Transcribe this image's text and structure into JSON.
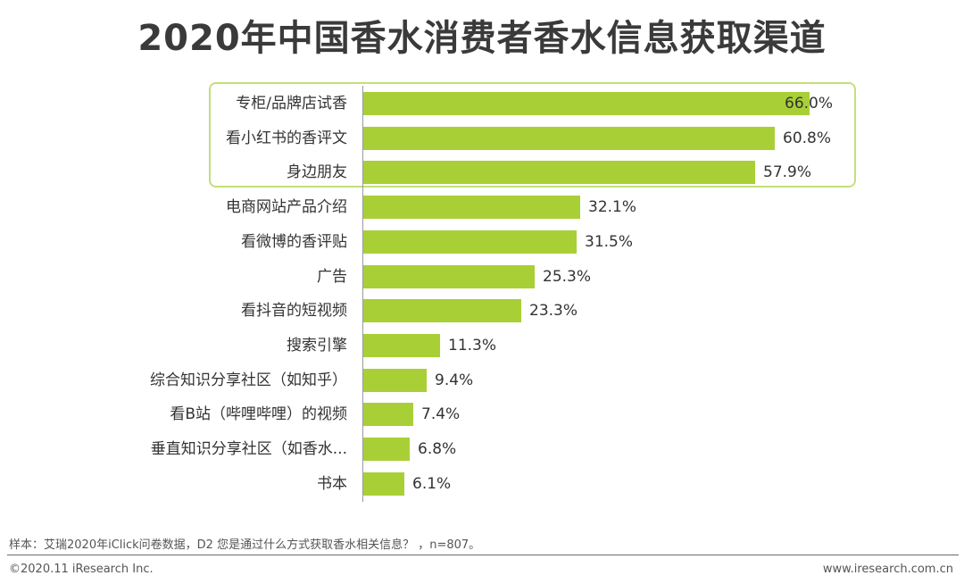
{
  "chart_data": {
    "type": "bar",
    "orientation": "horizontal",
    "title": "2020年中国香水消费者香水信息获取渠道",
    "categories": [
      "专柜/品牌店试香",
      "看小红书的香评文",
      "身边朋友",
      "电商网站产品介绍",
      "看微博的香评贴",
      "广告",
      "看抖音的短视频",
      "搜索引擎",
      "综合知识分享社区（如知乎）",
      "看B站（哔哩哔哩）的视频",
      "垂直知识分享社区（如香水...",
      "书本"
    ],
    "values": [
      66.0,
      60.8,
      57.9,
      32.1,
      31.5,
      25.3,
      23.3,
      11.3,
      9.4,
      7.4,
      6.8,
      6.1
    ],
    "value_labels": [
      "66.0%",
      "60.8%",
      "57.9%",
      "32.1%",
      "31.5%",
      "25.3%",
      "23.3%",
      "11.3%",
      "9.4%",
      "7.4%",
      "6.8%",
      "6.1%"
    ],
    "xlim": [
      0,
      66.0
    ],
    "highlighted_categories": [
      "专柜/品牌店试香",
      "看小红书的香评文",
      "身边朋友"
    ],
    "bar_color": "#a8d036",
    "highlight_border_color": "#c3e07a"
  },
  "footer": {
    "note": "样本：艾瑞2020年iClick问卷数据，D2 您是通过什么方式获取香水相关信息？ ，n=807。",
    "copyright": "©2020.11 iResearch Inc.",
    "website": "www.iresearch.com.cn"
  }
}
